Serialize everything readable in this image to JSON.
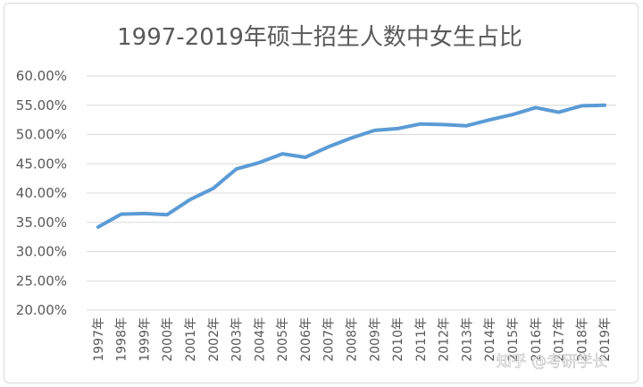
{
  "chart_data": {
    "type": "line",
    "title": "1997-2019年硕士招生人数中女生占比",
    "xlabel": "",
    "ylabel": "",
    "categories": [
      "1997年",
      "1998年",
      "1999年",
      "2000年",
      "2001年",
      "2002年",
      "2003年",
      "2004年",
      "2005年",
      "2006年",
      "2007年",
      "2008年",
      "2009年",
      "2010年",
      "2011年",
      "2012年",
      "2013年",
      "2014年",
      "2015年",
      "2016年",
      "2017年",
      "2018年",
      "2019年"
    ],
    "series": [
      {
        "color": "#5b9bd5",
        "values": [
          0.342,
          0.364,
          0.365,
          0.363,
          0.389,
          0.408,
          0.441,
          0.452,
          0.467,
          0.461,
          0.479,
          0.494,
          0.507,
          0.51,
          0.518,
          0.517,
          0.515,
          0.525,
          0.534,
          0.546,
          0.538,
          0.549,
          0.55
        ]
      }
    ],
    "ylim": [
      0.2,
      0.6
    ],
    "yticks": [
      0.6,
      0.55,
      0.5,
      0.45,
      0.4,
      0.35,
      0.3,
      0.25,
      0.2
    ],
    "ytick_labels": [
      "60.00%",
      "55.00%",
      "50.00%",
      "45.00%",
      "40.00%",
      "35.00%",
      "30.00%",
      "25.00%",
      "20.00%"
    ],
    "grid": true,
    "legend": "none"
  },
  "watermark": "知乎 @考研学长"
}
